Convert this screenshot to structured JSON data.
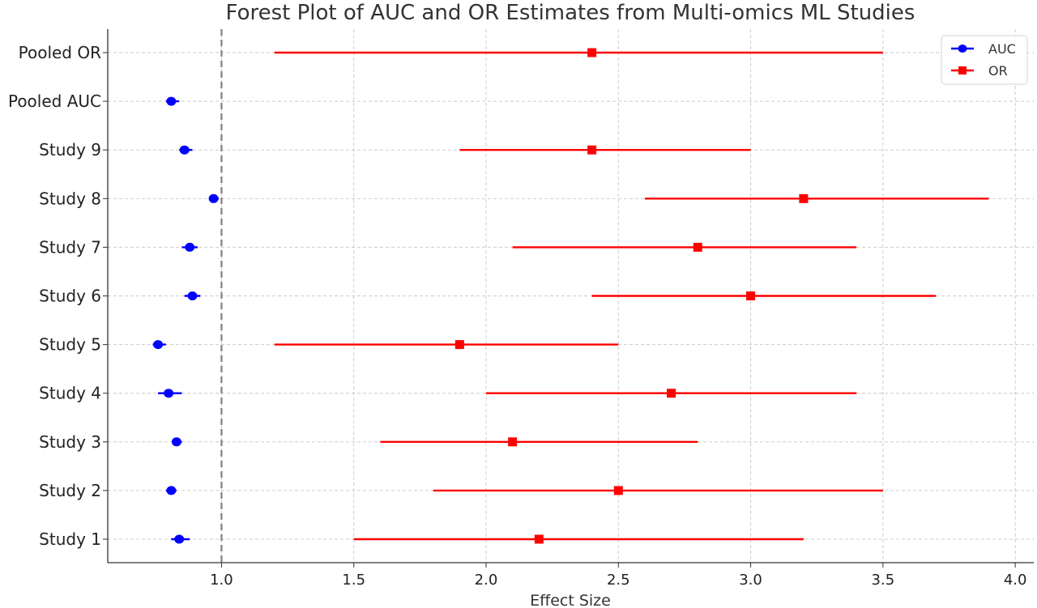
{
  "chart_data": {
    "type": "scatter",
    "title": "Forest Plot of AUC and OR Estimates from Multi-omics ML Studies",
    "xlabel": "Effect Size",
    "ylabel": "",
    "xlim": [
      0.57,
      4.07
    ],
    "xticks": [
      1.0,
      1.5,
      2.0,
      2.5,
      3.0,
      3.5,
      4.0
    ],
    "xtick_labels": [
      "1.0",
      "1.5",
      "2.0",
      "2.5",
      "3.0",
      "3.5",
      "4.0"
    ],
    "categories": [
      "Study 1",
      "Study 2",
      "Study 3",
      "Study 4",
      "Study 5",
      "Study 6",
      "Study 7",
      "Study 8",
      "Study 9",
      "Pooled AUC",
      "Pooled OR"
    ],
    "reference_line": 1.0,
    "grid": true,
    "legend_position": "top-right",
    "series": [
      {
        "name": "AUC",
        "color": "#0000ff",
        "marker": "circle",
        "points": [
          {
            "category": "Study 1",
            "value": 0.84,
            "lower": 0.81,
            "upper": 0.88
          },
          {
            "category": "Study 2",
            "value": 0.81,
            "lower": 0.79,
            "upper": 0.83
          },
          {
            "category": "Study 3",
            "value": 0.83,
            "lower": 0.82,
            "upper": 0.85
          },
          {
            "category": "Study 4",
            "value": 0.8,
            "lower": 0.76,
            "upper": 0.85
          },
          {
            "category": "Study 5",
            "value": 0.76,
            "lower": 0.74,
            "upper": 0.79
          },
          {
            "category": "Study 6",
            "value": 0.89,
            "lower": 0.86,
            "upper": 0.92
          },
          {
            "category": "Study 7",
            "value": 0.88,
            "lower": 0.85,
            "upper": 0.91
          },
          {
            "category": "Study 8",
            "value": 0.97,
            "lower": 0.96,
            "upper": 0.99
          },
          {
            "category": "Study 9",
            "value": 0.86,
            "lower": 0.84,
            "upper": 0.89
          },
          {
            "category": "Pooled AUC",
            "value": 0.81,
            "lower": 0.79,
            "upper": 0.84
          }
        ]
      },
      {
        "name": "OR",
        "color": "#ff0000",
        "marker": "square",
        "points": [
          {
            "category": "Study 1",
            "value": 2.2,
            "lower": 1.5,
            "upper": 3.2
          },
          {
            "category": "Study 2",
            "value": 2.5,
            "lower": 1.8,
            "upper": 3.5
          },
          {
            "category": "Study 3",
            "value": 2.1,
            "lower": 1.6,
            "upper": 2.8
          },
          {
            "category": "Study 4",
            "value": 2.7,
            "lower": 2.0,
            "upper": 3.4
          },
          {
            "category": "Study 5",
            "value": 1.9,
            "lower": 1.2,
            "upper": 2.5
          },
          {
            "category": "Study 6",
            "value": 3.0,
            "lower": 2.4,
            "upper": 3.7
          },
          {
            "category": "Study 7",
            "value": 2.8,
            "lower": 2.1,
            "upper": 3.4
          },
          {
            "category": "Study 8",
            "value": 3.2,
            "lower": 2.6,
            "upper": 3.9
          },
          {
            "category": "Study 9",
            "value": 2.4,
            "lower": 1.9,
            "upper": 3.0
          },
          {
            "category": "Pooled OR",
            "value": 2.4,
            "lower": 1.2,
            "upper": 3.5
          }
        ]
      }
    ]
  }
}
